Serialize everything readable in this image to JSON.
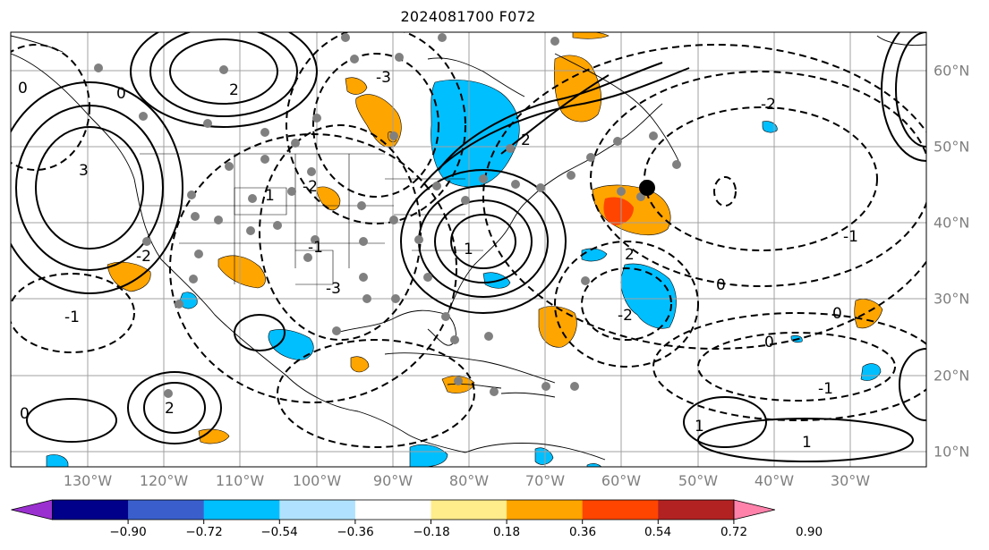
{
  "title": "2024081700 F072",
  "lon_labels": [
    "130°W",
    "120°W",
    "110°W",
    "100°W",
    "90°W",
    "80°W",
    "70°W",
    "60°W",
    "50°W",
    "40°W",
    "30°W"
  ],
  "lat_labels": [
    "60°N",
    "50°N",
    "40°N",
    "30°N",
    "20°N",
    "10°N"
  ],
  "contour_labels": [
    "0",
    "-1",
    "-2",
    "-3",
    "1",
    "2",
    "3",
    "0",
    "-1",
    "-2",
    "-3",
    "1",
    "2",
    "0",
    "-1",
    "-2",
    "1",
    "2",
    "0",
    "-1",
    "1",
    "0",
    "-2",
    "2",
    "0"
  ],
  "colorbar": {
    "ticks": [
      "−0.90",
      "−0.72",
      "−0.54",
      "−0.36",
      "−0.18",
      "0.18",
      "0.36",
      "0.54",
      "0.72",
      "0.90"
    ],
    "colors": [
      "#9b30d0",
      "#00008b",
      "#3a5fcd",
      "#00bfff",
      "#b0e2ff",
      "#ffffff",
      "#ffec8b",
      "#ffa500",
      "#ff4500",
      "#b22222",
      "#ff82ab"
    ],
    "extend": "both"
  },
  "markers": {
    "gray_station_color": "#808080",
    "center_marker_color": "#000000"
  }
}
